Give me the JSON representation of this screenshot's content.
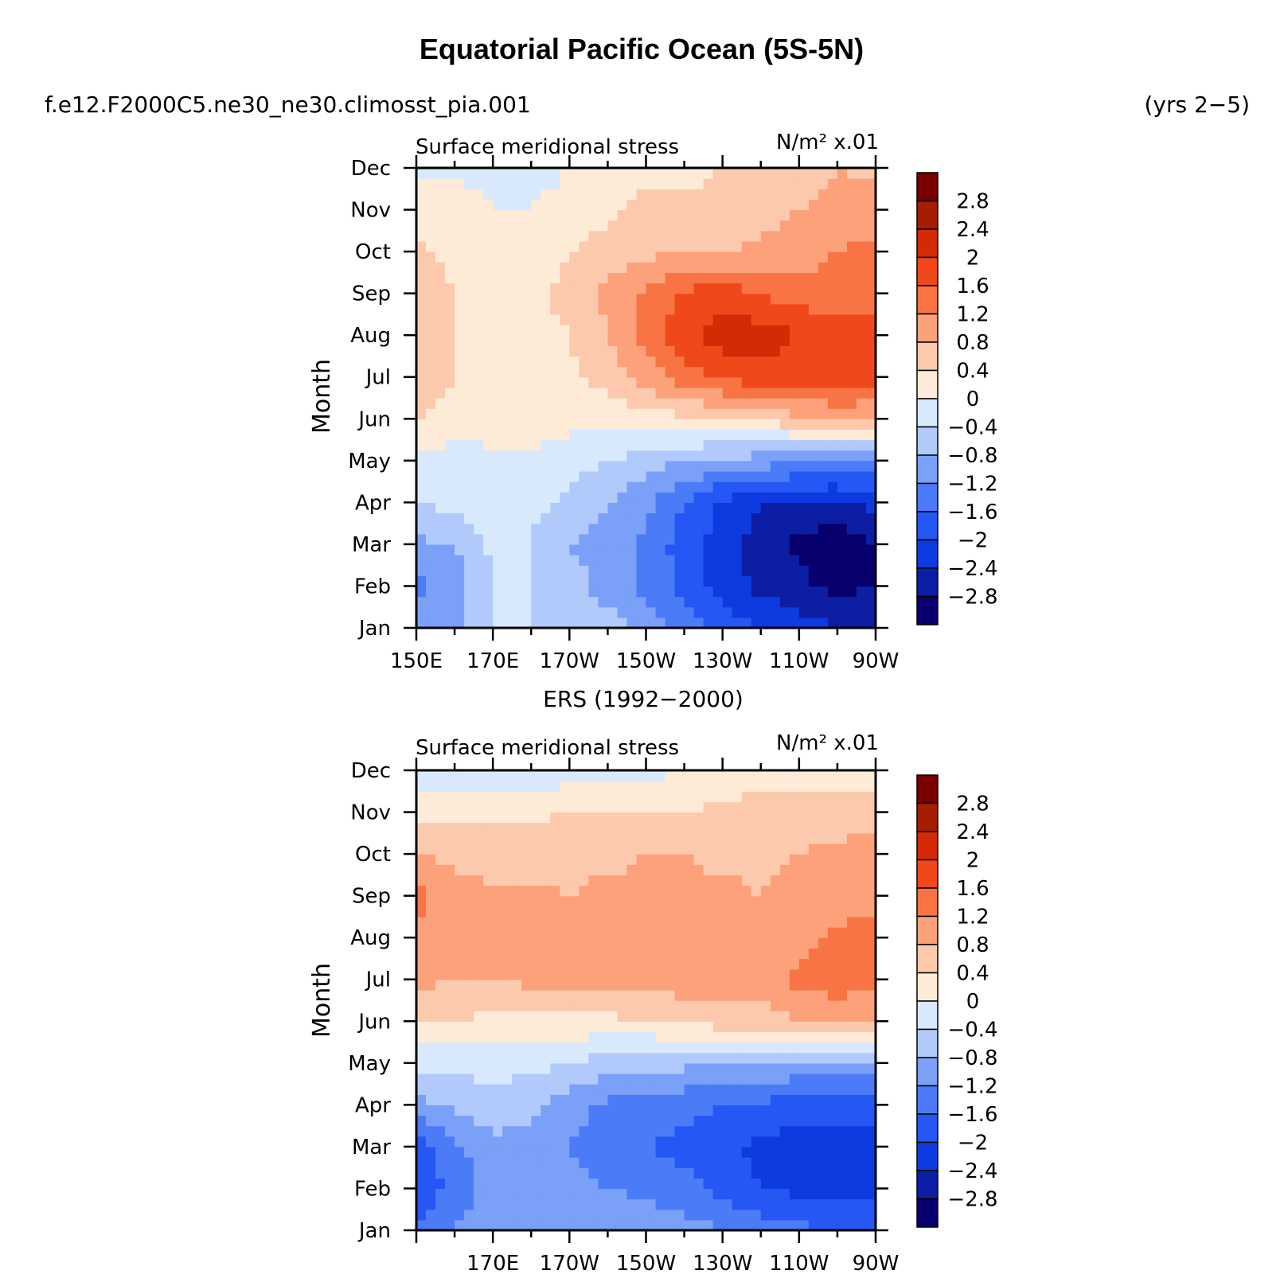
{
  "title": "Equatorial Pacific Ocean (5S-5N)",
  "case_name": "f.e12.F2000C5.ne30_ne30.climosst_pia.001",
  "years": "(yrs 2−5)",
  "colorbar_labels": [
    "2.8",
    "2.4",
    "2",
    "1.6",
    "1.2",
    "0.8",
    "0.4",
    "0",
    "−0.4",
    "−0.8",
    "−1.2",
    "−1.6",
    "−2",
    "−2.4",
    "−2.8"
  ],
  "colors": {
    "levels": [
      "#ffffff",
      "#08006e",
      "#0d1ea4",
      "#0d3be0",
      "#2557f5",
      "#4b7bf7",
      "#7ba0f8",
      "#b1cafb",
      "#d8e8fd",
      "#fdebd8",
      "#fdc9ad",
      "#fca17a",
      "#f97445",
      "#f0481a",
      "#d42a06",
      "#a51d02",
      "#780000"
    ],
    "axis": "#000000"
  },
  "chart_data": [
    {
      "type": "heatmap",
      "panel_title": "",
      "title_left": "Surface meridional stress",
      "title_right": "N/m² x.01",
      "ylabel": "Month",
      "xlabel": "",
      "x_ticks": [
        "150E",
        "170E",
        "170W",
        "150W",
        "130W",
        "110W",
        "90W"
      ],
      "y_ticks": [
        "Jan",
        "Feb",
        "Mar",
        "Apr",
        "May",
        "Jun",
        "Jul",
        "Aug",
        "Sep",
        "Oct",
        "Nov",
        "Dec"
      ],
      "xlim": [
        150,
        270
      ],
      "ylim": [
        1,
        12
      ],
      "x": [
        150,
        160,
        170,
        180,
        190,
        200,
        210,
        220,
        230,
        240,
        250,
        260,
        270
      ],
      "z_rows_jan_to_dec": [
        [
          -1.0,
          -1.0,
          -0.4,
          -0.4,
          -0.4,
          -0.6,
          -1.0,
          -1.4,
          -1.8,
          -2.0,
          -2.2,
          -2.4,
          -2.4
        ],
        [
          -1.3,
          -1.0,
          -0.4,
          -0.4,
          -0.6,
          -1.0,
          -1.3,
          -1.7,
          -2.2,
          -2.5,
          -2.7,
          -2.9,
          -2.8
        ],
        [
          -0.9,
          -0.8,
          -0.3,
          -0.4,
          -0.8,
          -1.0,
          -1.3,
          -1.8,
          -2.2,
          -2.6,
          -2.9,
          -3.1,
          -2.8
        ],
        [
          -0.4,
          -0.3,
          -0.2,
          -0.3,
          -0.5,
          -0.8,
          -1.1,
          -1.6,
          -2.1,
          -2.4,
          -2.5,
          -2.5,
          -2.3
        ],
        [
          -0.1,
          -0.1,
          -0.1,
          -0.1,
          -0.2,
          -0.4,
          -0.6,
          -0.8,
          -0.9,
          -1.0,
          -1.1,
          -1.2,
          -1.2
        ],
        [
          0.4,
          0.1,
          0.2,
          0.2,
          0.1,
          0.1,
          0.2,
          0.3,
          0.4,
          0.5,
          0.7,
          0.9,
          0.8
        ],
        [
          0.8,
          0.4,
          0.2,
          0.2,
          0.3,
          0.6,
          1.0,
          1.4,
          1.7,
          1.8,
          1.8,
          1.8,
          1.7
        ],
        [
          0.8,
          0.4,
          0.1,
          0.2,
          0.4,
          0.8,
          1.3,
          1.9,
          2.2,
          2.2,
          2.0,
          1.8,
          1.8
        ],
        [
          0.6,
          0.4,
          0.1,
          0.2,
          0.6,
          0.9,
          1.3,
          1.7,
          1.8,
          1.6,
          1.4,
          1.4,
          1.4
        ],
        [
          0.5,
          0.3,
          0.1,
          0.1,
          0.4,
          0.6,
          0.7,
          0.8,
          0.8,
          0.9,
          1.0,
          1.2,
          1.3
        ],
        [
          0.2,
          0.2,
          0.0,
          0.0,
          0.1,
          0.3,
          0.5,
          0.5,
          0.5,
          0.6,
          0.8,
          0.9,
          1.0
        ],
        [
          -0.1,
          -0.1,
          -0.1,
          -0.1,
          0.0,
          0.1,
          0.3,
          0.3,
          0.4,
          0.4,
          0.6,
          0.8,
          0.7
        ]
      ]
    },
    {
      "type": "heatmap",
      "panel_title": "ERS (1992−2000)",
      "title_left": "Surface meridional stress",
      "title_right": "N/m² x.01",
      "ylabel": "Month",
      "xlabel": "",
      "x_ticks": [
        "170E",
        "170W",
        "150W",
        "130W",
        "110W",
        "90W"
      ],
      "y_ticks": [
        "Jan",
        "Feb",
        "Mar",
        "Apr",
        "May",
        "Jun",
        "Jul",
        "Aug",
        "Sep",
        "Oct",
        "Nov",
        "Dec"
      ],
      "xlim": [
        150,
        270
      ],
      "ylim": [
        1,
        12
      ],
      "x": [
        150,
        160,
        170,
        180,
        190,
        200,
        210,
        220,
        230,
        240,
        250,
        260,
        270
      ],
      "z_rows_jan_to_dec": [
        [
          -1.6,
          -1.2,
          -1.0,
          -0.8,
          -0.9,
          -0.9,
          -0.9,
          -1.0,
          -1.2,
          -1.4,
          -1.5,
          -1.6,
          -1.6
        ],
        [
          -2.0,
          -1.4,
          -1.1,
          -1.0,
          -1.1,
          -1.2,
          -1.3,
          -1.5,
          -1.7,
          -2.0,
          -2.1,
          -2.2,
          -2.2
        ],
        [
          -1.9,
          -1.3,
          -0.9,
          -0.9,
          -1.2,
          -1.4,
          -1.6,
          -1.7,
          -1.9,
          -2.1,
          -2.2,
          -2.3,
          -2.2
        ],
        [
          -0.9,
          -0.7,
          -0.6,
          -0.7,
          -1.0,
          -1.3,
          -1.3,
          -1.5,
          -1.6,
          -1.7,
          -1.8,
          -1.8,
          -1.7
        ],
        [
          -0.3,
          -0.3,
          -0.2,
          -0.3,
          -0.4,
          -0.6,
          -0.7,
          -0.7,
          -0.8,
          -0.8,
          -0.9,
          -1.0,
          -0.9
        ],
        [
          0.5,
          0.4,
          0.3,
          0.3,
          0.3,
          0.3,
          0.4,
          0.5,
          0.6,
          0.6,
          0.8,
          1.0,
          0.8
        ],
        [
          0.9,
          0.8,
          0.8,
          0.9,
          0.9,
          0.9,
          0.9,
          1.0,
          1.0,
          1.0,
          1.3,
          1.4,
          1.3
        ],
        [
          1.0,
          0.9,
          1.0,
          1.0,
          1.0,
          1.0,
          1.0,
          1.0,
          1.0,
          0.9,
          1.1,
          1.3,
          1.3
        ],
        [
          1.4,
          0.9,
          0.9,
          0.9,
          0.8,
          0.9,
          0.9,
          0.9,
          0.9,
          0.8,
          0.9,
          1.0,
          1.1
        ],
        [
          0.8,
          0.7,
          0.6,
          0.6,
          0.7,
          0.7,
          0.8,
          0.8,
          0.7,
          0.7,
          0.8,
          0.9,
          1.0
        ],
        [
          0.2,
          0.3,
          0.3,
          0.3,
          0.4,
          0.4,
          0.4,
          0.4,
          0.5,
          0.6,
          0.6,
          0.6,
          0.6
        ],
        [
          -0.3,
          -0.2,
          -0.3,
          -0.4,
          -0.2,
          -0.2,
          -0.1,
          0.0,
          0.1,
          0.2,
          0.2,
          0.2,
          0.2
        ]
      ]
    }
  ]
}
